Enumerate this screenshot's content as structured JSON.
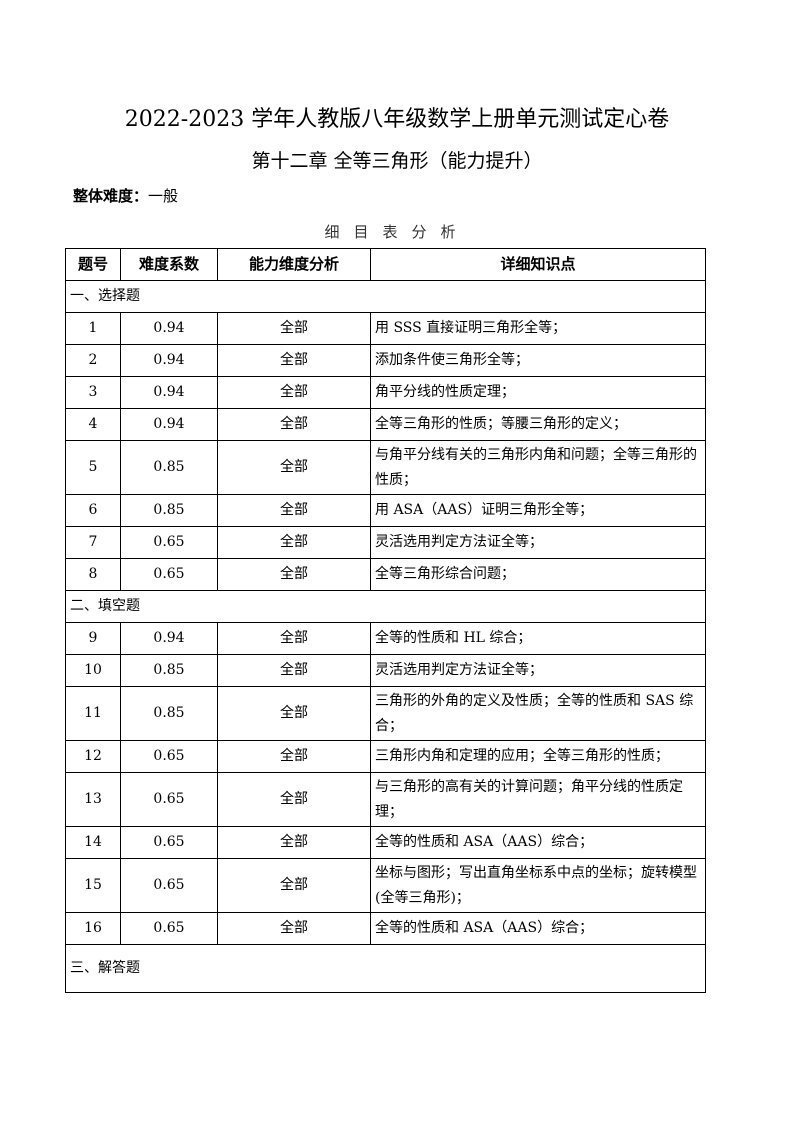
{
  "title": "2022-2023 学年人教版八年级数学上册单元测试定心卷",
  "subtitle": "第十二章  全等三角形（能力提升）",
  "difficulty": {
    "label": "整体难度：",
    "value": "一般"
  },
  "table_caption": "细目表分析",
  "headers": [
    "题号",
    "难度系数",
    "能力维度分析",
    "详细知识点"
  ],
  "sections": [
    {
      "title": "一、选择题",
      "rows": [
        {
          "no": "1",
          "coef": "0.94",
          "dim": "全部",
          "kp": "用 SSS 直接证明三角形全等；"
        },
        {
          "no": "2",
          "coef": "0.94",
          "dim": "全部",
          "kp": "添加条件使三角形全等；"
        },
        {
          "no": "3",
          "coef": "0.94",
          "dim": "全部",
          "kp": "角平分线的性质定理；"
        },
        {
          "no": "4",
          "coef": "0.94",
          "dim": "全部",
          "kp": "全等三角形的性质；等腰三角形的定义；"
        },
        {
          "no": "5",
          "coef": "0.85",
          "dim": "全部",
          "kp": "与角平分线有关的三角形内角和问题；全等三角形的性质；",
          "tall": true
        },
        {
          "no": "6",
          "coef": "0.85",
          "dim": "全部",
          "kp": "用 ASA（AAS）证明三角形全等；"
        },
        {
          "no": "7",
          "coef": "0.65",
          "dim": "全部",
          "kp": "灵活选用判定方法证全等；"
        },
        {
          "no": "8",
          "coef": "0.65",
          "dim": "全部",
          "kp": "全等三角形综合问题；"
        }
      ]
    },
    {
      "title": "二、填空题",
      "rows": [
        {
          "no": "9",
          "coef": "0.94",
          "dim": "全部",
          "kp": "全等的性质和 HL 综合；"
        },
        {
          "no": "10",
          "coef": "0.85",
          "dim": "全部",
          "kp": "灵活选用判定方法证全等；"
        },
        {
          "no": "11",
          "coef": "0.85",
          "dim": "全部",
          "kp": "三角形的外角的定义及性质；全等的性质和 SAS 综合；",
          "tall": true
        },
        {
          "no": "12",
          "coef": "0.65",
          "dim": "全部",
          "kp": "三角形内角和定理的应用；全等三角形的性质；"
        },
        {
          "no": "13",
          "coef": "0.65",
          "dim": "全部",
          "kp": "与三角形的高有关的计算问题；角平分线的性质定理；",
          "tall": true
        },
        {
          "no": "14",
          "coef": "0.65",
          "dim": "全部",
          "kp": "全等的性质和 ASA（AAS）综合；"
        },
        {
          "no": "15",
          "coef": "0.65",
          "dim": "全部",
          "kp": "坐标与图形；写出直角坐标系中点的坐标；旋转模型(全等三角形)；",
          "tall": true
        },
        {
          "no": "16",
          "coef": "0.65",
          "dim": "全部",
          "kp": "全等的性质和 ASA（AAS）综合；"
        }
      ]
    },
    {
      "title": "三、解答题",
      "rows": []
    }
  ]
}
